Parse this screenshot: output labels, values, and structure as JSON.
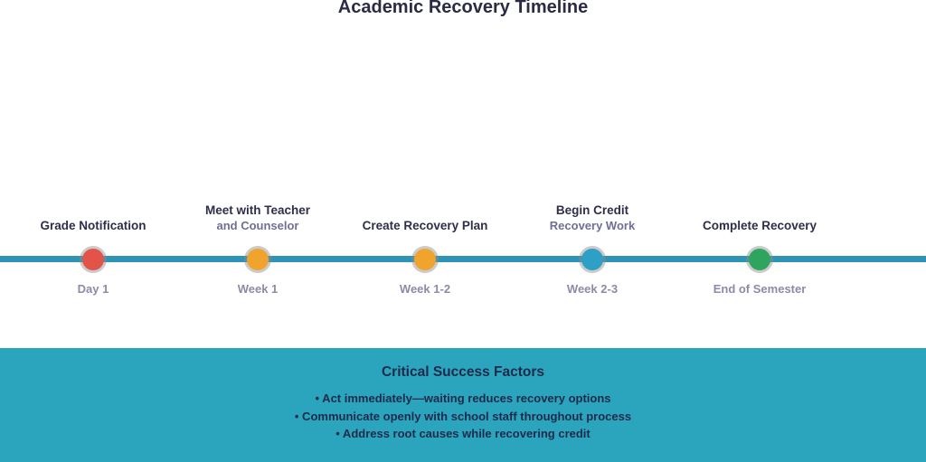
{
  "title": "Academic Recovery Timeline",
  "timeline": {
    "line_color": "#2E93B4",
    "events": [
      {
        "label": "Grade Notification",
        "sublabel": "",
        "time": "Day 1",
        "color": "#E25349"
      },
      {
        "label": "Meet with Teacher",
        "sublabel": "and Counselor",
        "time": "Week 1",
        "color": "#F0A42E"
      },
      {
        "label": "Create Recovery Plan",
        "sublabel": "",
        "time": "Week 1-2",
        "color": "#F0A42E"
      },
      {
        "label": "Begin Credit",
        "sublabel": "Recovery Work",
        "time": "Week 2-3",
        "color": "#2FA0C5"
      },
      {
        "label": "Complete Recovery",
        "sublabel": "",
        "time": "End of Semester",
        "color": "#2FA45F"
      }
    ]
  },
  "footer": {
    "title": "Critical Success Factors",
    "background": "#2BA4BD",
    "bullets": [
      "• Act immediately—waiting reduces recovery options",
      "• Communicate openly with school staff throughout process",
      "• Address root causes while recovering credit"
    ]
  }
}
